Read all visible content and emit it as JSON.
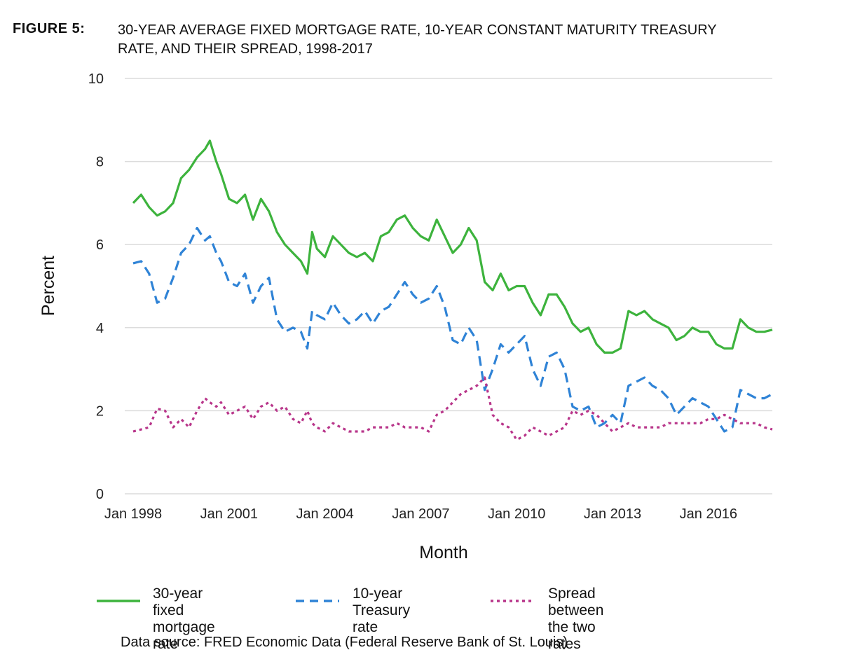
{
  "figure": {
    "label": "FIGURE 5:",
    "title_line1": "30-YEAR AVERAGE FIXED MORTGAGE RATE, 10-YEAR CONSTANT MATURITY TREASURY",
    "title_line2": "RATE, AND THEIR SPREAD, 1998-2017",
    "source": "Data source: FRED Economic Data (Federal Reserve Bank of St. Louis)"
  },
  "chart_data": {
    "type": "line",
    "xlabel": "Month",
    "ylabel": "Percent",
    "xlim": [
      1998.0,
      2018.0
    ],
    "ylim": [
      0,
      10
    ],
    "yticks": [
      0,
      2,
      4,
      6,
      8,
      10
    ],
    "xticks": [
      {
        "value": 1998.0,
        "label": "Jan 1998"
      },
      {
        "value": 2001.0,
        "label": "Jan 2001"
      },
      {
        "value": 2004.0,
        "label": "Jan 2004"
      },
      {
        "value": 2007.0,
        "label": "Jan 2007"
      },
      {
        "value": 2010.0,
        "label": "Jan 2010"
      },
      {
        "value": 2013.0,
        "label": "Jan 2013"
      },
      {
        "value": 2016.0,
        "label": "Jan 2016"
      }
    ],
    "grid": "horizontal",
    "legend_position": "bottom",
    "series": [
      {
        "name": "30-year fixed mortgage rate",
        "color": "#3db33d",
        "style": "solid",
        "x": [
          1998.0,
          1998.25,
          1998.5,
          1998.75,
          1999.0,
          1999.25,
          1999.5,
          1999.75,
          2000.0,
          2000.25,
          2000.4,
          2000.6,
          2000.75,
          2001.0,
          2001.25,
          2001.5,
          2001.75,
          2002.0,
          2002.25,
          2002.5,
          2002.75,
          2003.0,
          2003.25,
          2003.45,
          2003.6,
          2003.75,
          2004.0,
          2004.25,
          2004.5,
          2004.75,
          2005.0,
          2005.25,
          2005.5,
          2005.75,
          2006.0,
          2006.25,
          2006.5,
          2006.75,
          2007.0,
          2007.25,
          2007.5,
          2007.75,
          2008.0,
          2008.25,
          2008.5,
          2008.75,
          2009.0,
          2009.25,
          2009.5,
          2009.75,
          2010.0,
          2010.25,
          2010.5,
          2010.75,
          2011.0,
          2011.25,
          2011.5,
          2011.75,
          2012.0,
          2012.25,
          2012.5,
          2012.75,
          2013.0,
          2013.25,
          2013.5,
          2013.75,
          2014.0,
          2014.25,
          2014.5,
          2014.75,
          2015.0,
          2015.25,
          2015.5,
          2015.75,
          2016.0,
          2016.25,
          2016.5,
          2016.75,
          2017.0,
          2017.25,
          2017.5,
          2017.75,
          2018.0
        ],
        "y": [
          7.0,
          7.2,
          6.9,
          6.7,
          6.8,
          7.0,
          7.6,
          7.8,
          8.1,
          8.3,
          8.5,
          8.0,
          7.7,
          7.1,
          7.0,
          7.2,
          6.6,
          7.1,
          6.8,
          6.3,
          6.0,
          5.8,
          5.6,
          5.3,
          6.3,
          5.9,
          5.7,
          6.2,
          6.0,
          5.8,
          5.7,
          5.8,
          5.6,
          6.2,
          6.3,
          6.6,
          6.7,
          6.4,
          6.2,
          6.1,
          6.6,
          6.2,
          5.8,
          6.0,
          6.4,
          6.1,
          5.1,
          4.9,
          5.3,
          4.9,
          5.0,
          5.0,
          4.6,
          4.3,
          4.8,
          4.8,
          4.5,
          4.1,
          3.9,
          4.0,
          3.6,
          3.4,
          3.4,
          3.5,
          4.4,
          4.3,
          4.4,
          4.2,
          4.1,
          4.0,
          3.7,
          3.8,
          4.0,
          3.9,
          3.9,
          3.6,
          3.5,
          3.5,
          4.2,
          4.0,
          3.9,
          3.9,
          3.95
        ]
      },
      {
        "name": "10-year Treasury rate",
        "color": "#2f83d6",
        "style": "dashed",
        "x": [
          1998.0,
          1998.25,
          1998.5,
          1998.75,
          1999.0,
          1999.25,
          1999.5,
          1999.75,
          2000.0,
          2000.25,
          2000.4,
          2000.6,
          2000.75,
          2001.0,
          2001.25,
          2001.5,
          2001.75,
          2002.0,
          2002.25,
          2002.5,
          2002.75,
          2003.0,
          2003.25,
          2003.45,
          2003.6,
          2003.75,
          2004.0,
          2004.25,
          2004.5,
          2004.75,
          2005.0,
          2005.25,
          2005.5,
          2005.75,
          2006.0,
          2006.25,
          2006.5,
          2006.75,
          2007.0,
          2007.25,
          2007.5,
          2007.75,
          2008.0,
          2008.25,
          2008.5,
          2008.75,
          2009.0,
          2009.25,
          2009.5,
          2009.75,
          2010.0,
          2010.25,
          2010.5,
          2010.75,
          2011.0,
          2011.25,
          2011.5,
          2011.75,
          2012.0,
          2012.25,
          2012.5,
          2012.75,
          2013.0,
          2013.25,
          2013.5,
          2013.75,
          2014.0,
          2014.25,
          2014.5,
          2014.75,
          2015.0,
          2015.25,
          2015.5,
          2015.75,
          2016.0,
          2016.25,
          2016.5,
          2016.75,
          2017.0,
          2017.25,
          2017.5,
          2017.75,
          2018.0
        ],
        "y": [
          5.55,
          5.6,
          5.3,
          4.6,
          4.7,
          5.2,
          5.8,
          6.0,
          6.4,
          6.1,
          6.2,
          5.8,
          5.6,
          5.1,
          5.0,
          5.3,
          4.6,
          5.0,
          5.2,
          4.2,
          3.9,
          4.0,
          3.9,
          3.5,
          4.4,
          4.3,
          4.2,
          4.6,
          4.3,
          4.1,
          4.2,
          4.4,
          4.1,
          4.4,
          4.5,
          4.8,
          5.1,
          4.8,
          4.6,
          4.7,
          5.0,
          4.5,
          3.7,
          3.6,
          4.0,
          3.7,
          2.5,
          3.0,
          3.6,
          3.4,
          3.6,
          3.8,
          3.0,
          2.6,
          3.3,
          3.4,
          3.0,
          2.1,
          2.0,
          2.1,
          1.6,
          1.7,
          1.9,
          1.7,
          2.6,
          2.7,
          2.8,
          2.6,
          2.5,
          2.3,
          1.9,
          2.1,
          2.3,
          2.2,
          2.1,
          1.8,
          1.5,
          1.6,
          2.5,
          2.4,
          2.3,
          2.3,
          2.4
        ]
      },
      {
        "name": "Spread between the two rates",
        "color": "#b8358a",
        "style": "dotted",
        "x": [
          1998.0,
          1998.25,
          1998.5,
          1998.75,
          1999.0,
          1999.25,
          1999.5,
          1999.75,
          2000.0,
          2000.25,
          2000.4,
          2000.6,
          2000.75,
          2001.0,
          2001.25,
          2001.5,
          2001.75,
          2002.0,
          2002.25,
          2002.5,
          2002.75,
          2003.0,
          2003.25,
          2003.45,
          2003.6,
          2003.75,
          2004.0,
          2004.25,
          2004.5,
          2004.75,
          2005.0,
          2005.25,
          2005.5,
          2005.75,
          2006.0,
          2006.25,
          2006.5,
          2006.75,
          2007.0,
          2007.25,
          2007.5,
          2007.75,
          2008.0,
          2008.25,
          2008.5,
          2008.75,
          2009.0,
          2009.25,
          2009.5,
          2009.75,
          2010.0,
          2010.25,
          2010.5,
          2010.75,
          2011.0,
          2011.25,
          2011.5,
          2011.75,
          2012.0,
          2012.25,
          2012.5,
          2012.75,
          2013.0,
          2013.25,
          2013.5,
          2013.75,
          2014.0,
          2014.25,
          2014.5,
          2014.75,
          2015.0,
          2015.25,
          2015.5,
          2015.75,
          2016.0,
          2016.25,
          2016.5,
          2016.75,
          2017.0,
          2017.25,
          2017.5,
          2017.75,
          2018.0
        ],
        "y": [
          1.5,
          1.55,
          1.6,
          2.05,
          2.0,
          1.6,
          1.8,
          1.6,
          2.0,
          2.3,
          2.2,
          2.1,
          2.2,
          1.9,
          2.0,
          2.1,
          1.8,
          2.1,
          2.2,
          2.0,
          2.1,
          1.8,
          1.7,
          2.0,
          1.7,
          1.6,
          1.5,
          1.7,
          1.6,
          1.5,
          1.5,
          1.5,
          1.6,
          1.6,
          1.6,
          1.7,
          1.6,
          1.6,
          1.6,
          1.5,
          1.9,
          2.0,
          2.2,
          2.4,
          2.5,
          2.6,
          2.8,
          1.9,
          1.7,
          1.6,
          1.3,
          1.4,
          1.6,
          1.5,
          1.4,
          1.5,
          1.6,
          2.0,
          1.9,
          2.0,
          1.9,
          1.7,
          1.5,
          1.6,
          1.7,
          1.6,
          1.6,
          1.6,
          1.6,
          1.7,
          1.7,
          1.7,
          1.7,
          1.7,
          1.8,
          1.8,
          1.9,
          1.8,
          1.7,
          1.7,
          1.7,
          1.6,
          1.55
        ]
      }
    ]
  },
  "legend": {
    "items": [
      {
        "line1": "30-year fixed",
        "line2": "mortgage rate"
      },
      {
        "line1": "10-year",
        "line2": "Treasury rate"
      },
      {
        "line1": "Spread between",
        "line2": "the two rates"
      }
    ]
  }
}
